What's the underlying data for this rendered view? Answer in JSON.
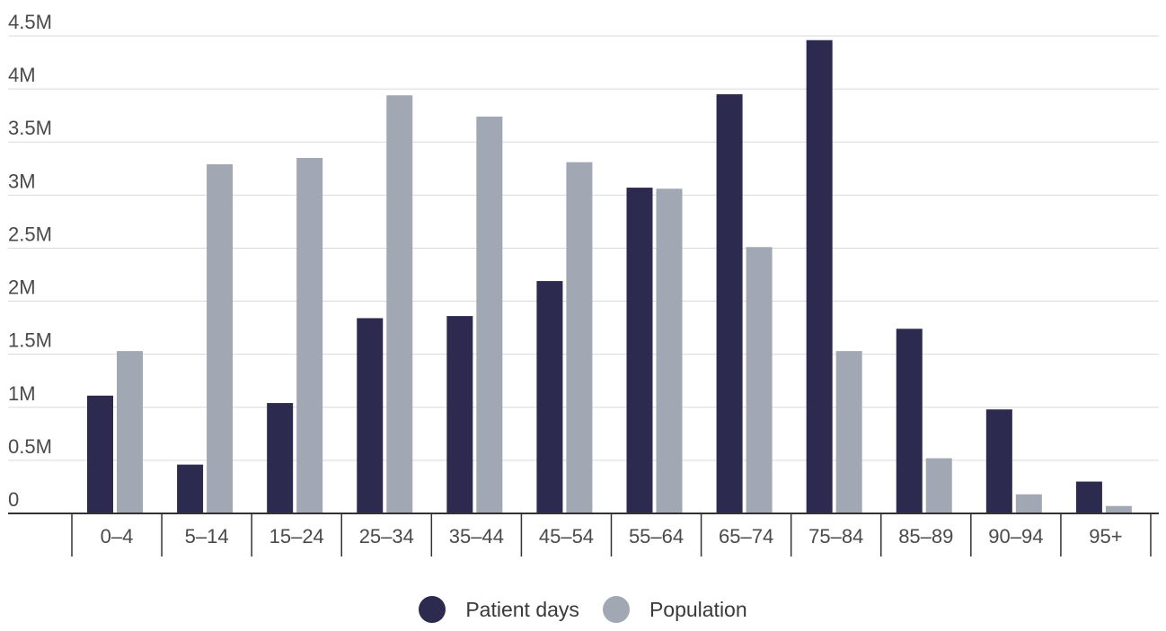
{
  "chart_data": {
    "type": "bar",
    "categories": [
      "0–4",
      "5–14",
      "15–24",
      "25–34",
      "35–44",
      "45–54",
      "55–64",
      "65–74",
      "75–84",
      "85–89",
      "90–94",
      "95+"
    ],
    "series": [
      {
        "name": "Patient days",
        "color": "#2c2a4e",
        "values": [
          1110000,
          460000,
          1040000,
          1840000,
          1860000,
          2190000,
          3070000,
          3950000,
          4460000,
          1740000,
          980000,
          300000
        ]
      },
      {
        "name": "Population",
        "color": "#a1a8b3",
        "values": [
          1530000,
          3290000,
          3350000,
          3940000,
          3740000,
          3310000,
          3060000,
          2510000,
          1530000,
          520000,
          180000,
          70000
        ]
      }
    ],
    "ylim": [
      0,
      4500000
    ],
    "yticks": [
      {
        "value": 0,
        "label": "0"
      },
      {
        "value": 500000,
        "label": "0.5M"
      },
      {
        "value": 1000000,
        "label": "1M"
      },
      {
        "value": 1500000,
        "label": "1.5M"
      },
      {
        "value": 2000000,
        "label": "2M"
      },
      {
        "value": 2500000,
        "label": "2.5M"
      },
      {
        "value": 3000000,
        "label": "3M"
      },
      {
        "value": 3500000,
        "label": "3.5M"
      },
      {
        "value": 4000000,
        "label": "4M"
      },
      {
        "value": 4500000,
        "label": "4.5M"
      }
    ],
    "grid": true,
    "legend_position": "bottom-center",
    "title": "",
    "xlabel": "",
    "ylabel": ""
  }
}
